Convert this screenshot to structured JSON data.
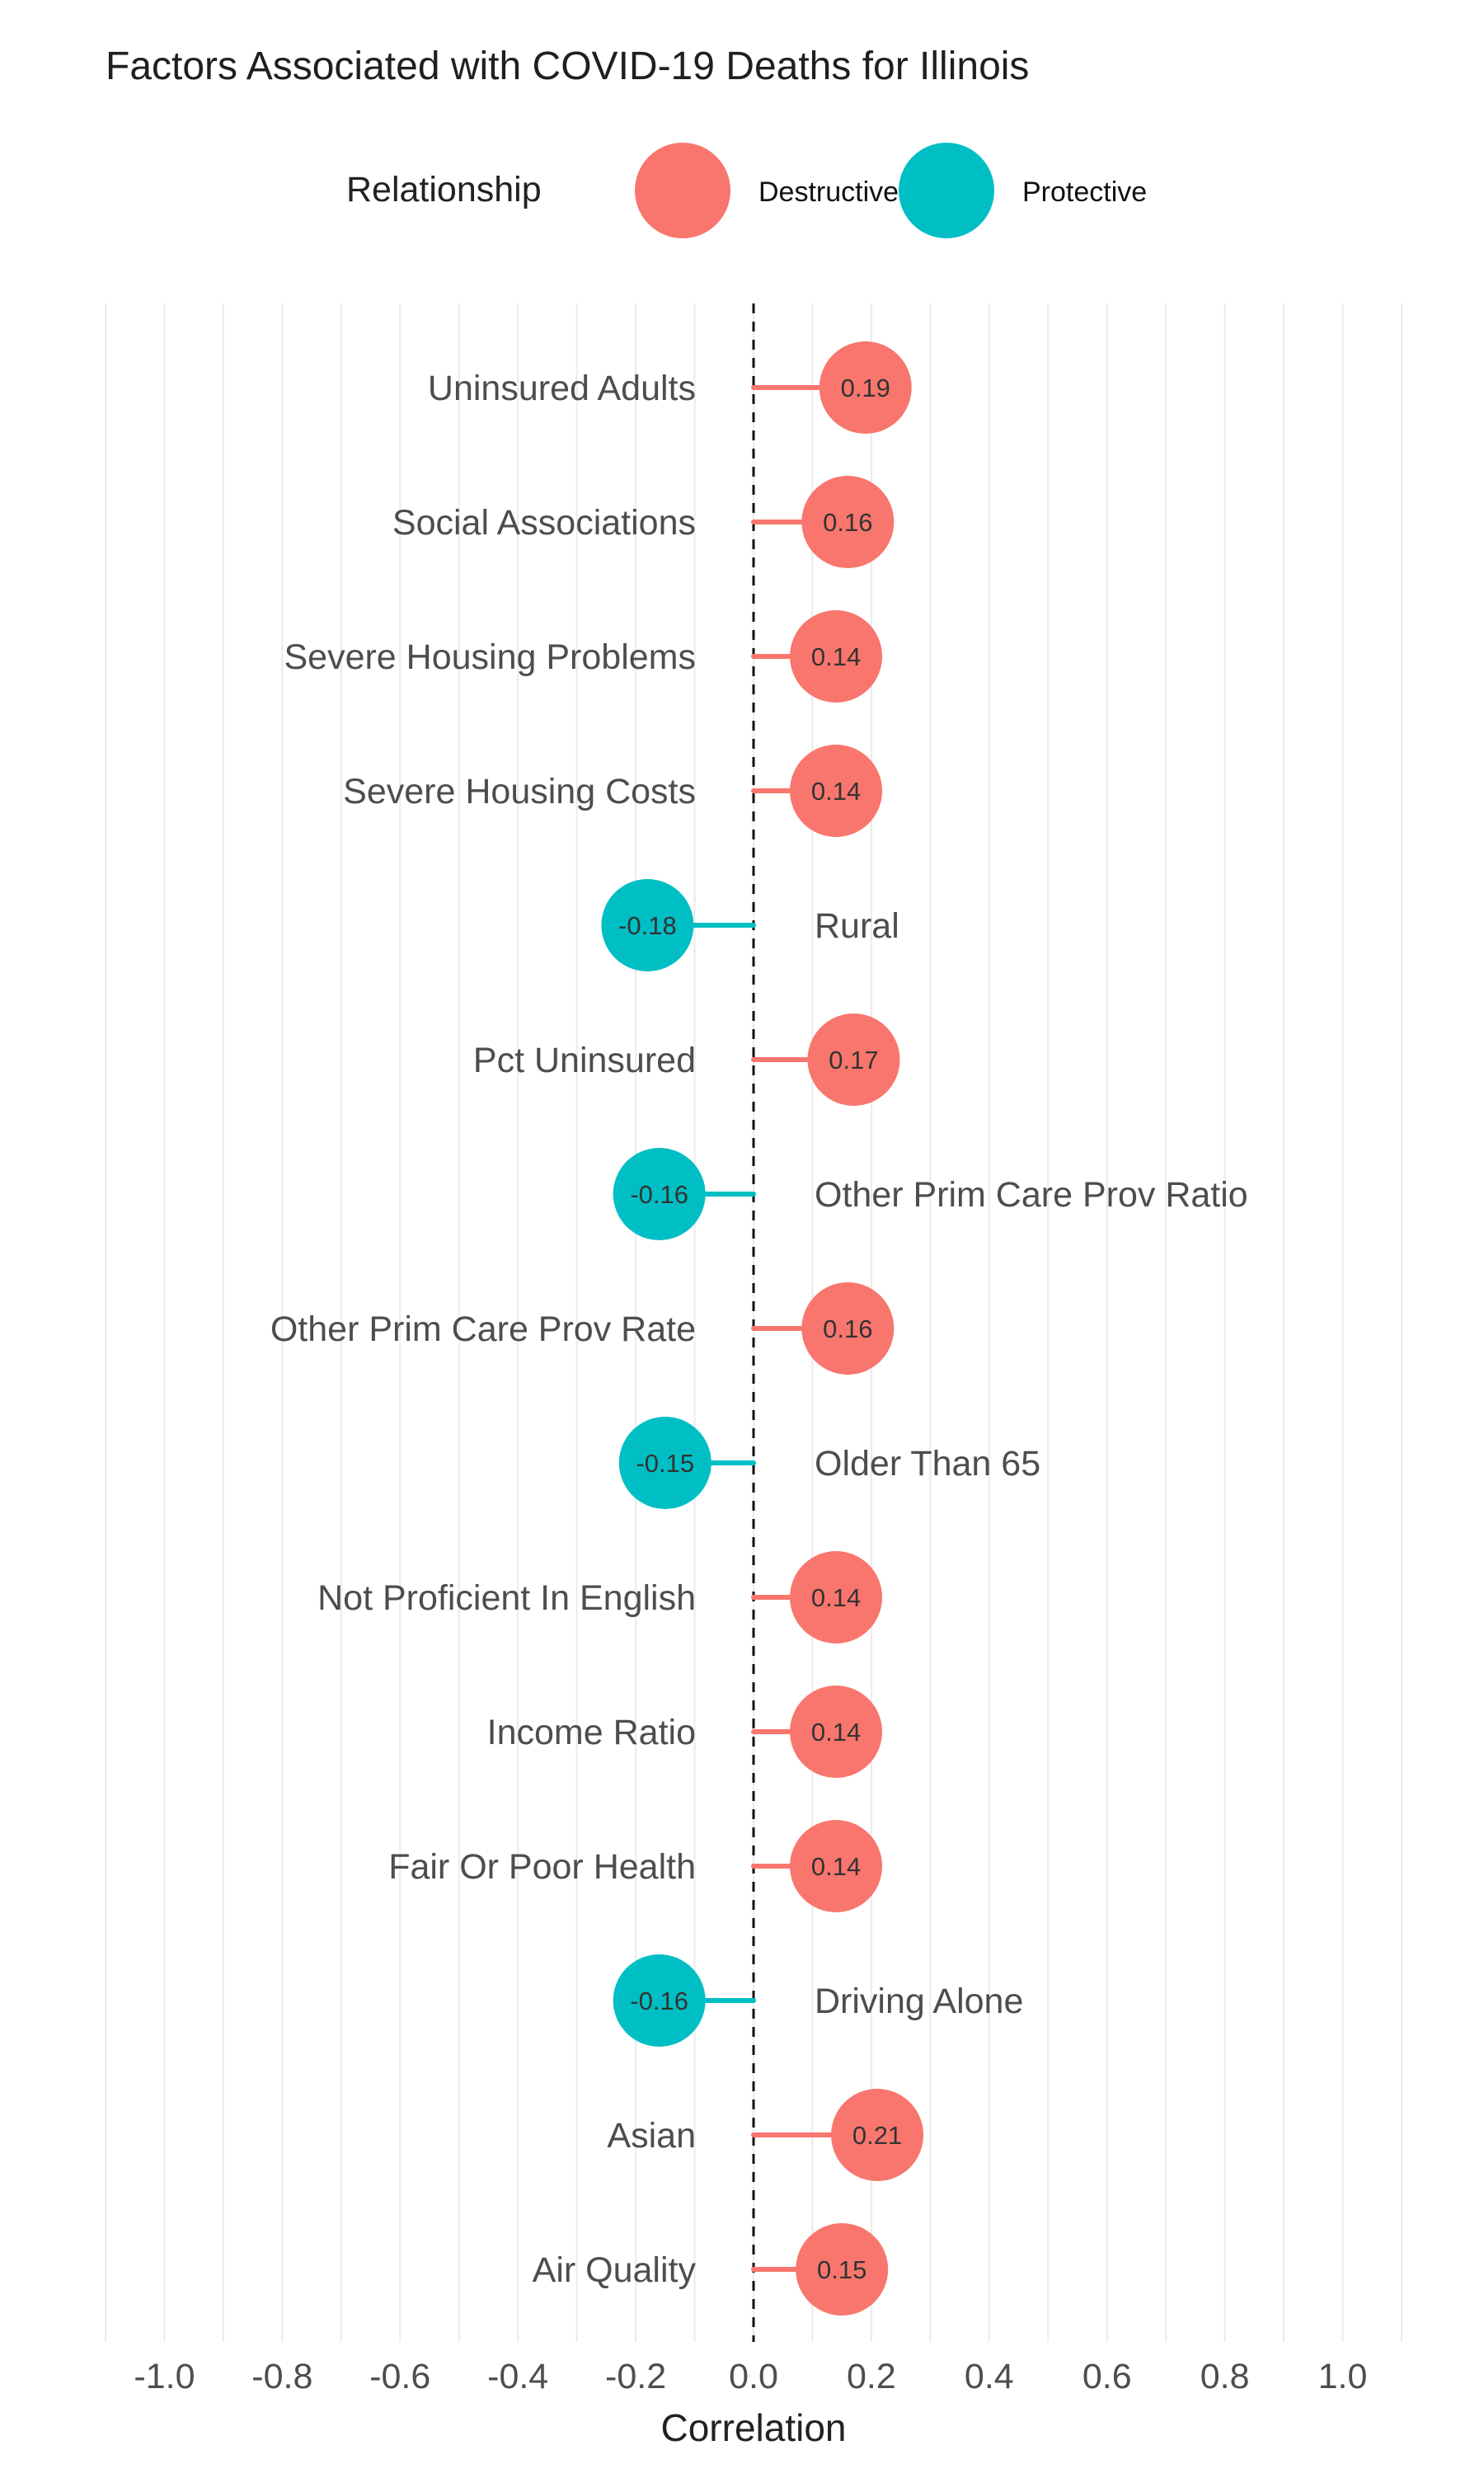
{
  "chart_data": {
    "type": "lollipop",
    "title": "Factors Associated with COVID-19 Deaths for Illinois",
    "xlabel": "Correlation",
    "ylabel": "",
    "xlim": [
      -1.1,
      1.1
    ],
    "x_ticks": [
      -1.0,
      -0.8,
      -0.6,
      -0.4,
      -0.2,
      0.0,
      0.2,
      0.4,
      0.6,
      0.8,
      1.0
    ],
    "x_tick_labels": [
      "-1.0",
      "-0.8",
      "-0.6",
      "-0.4",
      "-0.2",
      "0.0",
      "0.2",
      "0.4",
      "0.6",
      "0.8",
      "1.0"
    ],
    "grid": true,
    "reference_line": 0,
    "legend": {
      "title": "Relationship",
      "position": "top",
      "entries": [
        {
          "label": "Destructive",
          "color": "#F8766D"
        },
        {
          "label": "Protective",
          "color": "#00BFC4"
        }
      ]
    },
    "points": [
      {
        "category": "Uninsured Adults",
        "value": 0.19,
        "label": "0.19",
        "relationship": "Destructive"
      },
      {
        "category": "Social Associations",
        "value": 0.16,
        "label": "0.16",
        "relationship": "Destructive"
      },
      {
        "category": "Severe Housing Problems",
        "value": 0.14,
        "label": "0.14",
        "relationship": "Destructive"
      },
      {
        "category": "Severe Housing Costs",
        "value": 0.14,
        "label": "0.14",
        "relationship": "Destructive"
      },
      {
        "category": "Rural",
        "value": -0.18,
        "label": "-0.18",
        "relationship": "Protective"
      },
      {
        "category": "Pct Uninsured",
        "value": 0.17,
        "label": "0.17",
        "relationship": "Destructive"
      },
      {
        "category": "Other Prim Care Prov Ratio",
        "value": -0.16,
        "label": "-0.16",
        "relationship": "Protective"
      },
      {
        "category": "Other Prim Care Prov Rate",
        "value": 0.16,
        "label": "0.16",
        "relationship": "Destructive"
      },
      {
        "category": "Older Than 65",
        "value": -0.15,
        "label": "-0.15",
        "relationship": "Protective"
      },
      {
        "category": "Not Proficient In English",
        "value": 0.14,
        "label": "0.14",
        "relationship": "Destructive"
      },
      {
        "category": "Income Ratio",
        "value": 0.14,
        "label": "0.14",
        "relationship": "Destructive"
      },
      {
        "category": "Fair Or Poor Health",
        "value": 0.14,
        "label": "0.14",
        "relationship": "Destructive"
      },
      {
        "category": "Driving Alone",
        "value": -0.16,
        "label": "-0.16",
        "relationship": "Protective"
      },
      {
        "category": "Asian",
        "value": 0.21,
        "label": "0.21",
        "relationship": "Destructive"
      },
      {
        "category": "Air Quality",
        "value": 0.15,
        "label": "0.15",
        "relationship": "Destructive"
      }
    ]
  }
}
